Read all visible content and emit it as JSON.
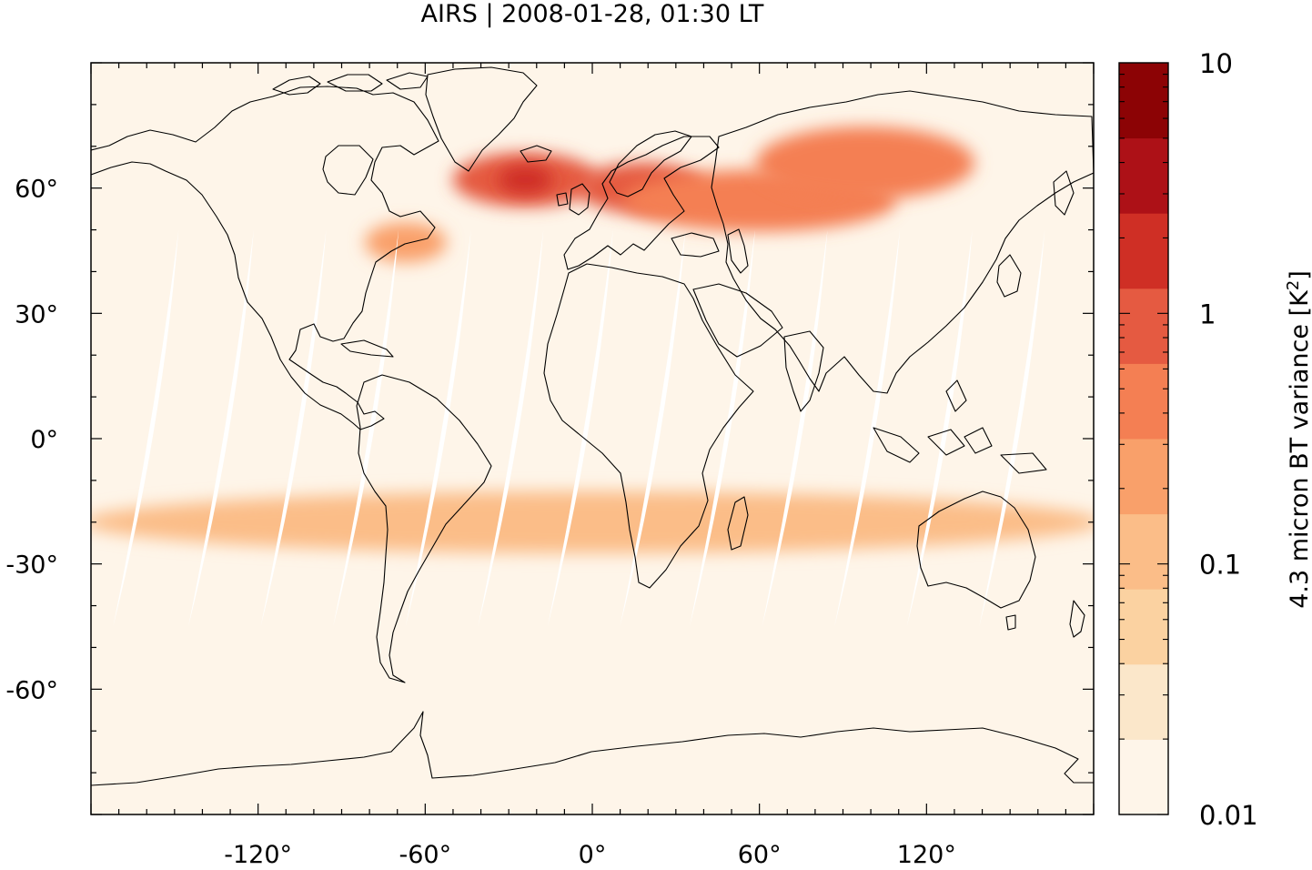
{
  "title": "AIRS | 2008-01-28, 01:30 LT",
  "map": {
    "projection": "equirectangular",
    "lon_range": [
      -180,
      180
    ],
    "lat_range": [
      -90,
      90
    ],
    "background_color": "#fef5e9",
    "swath_gap_color": "#ffffff",
    "coastline_color": "#000000",
    "lon_ticks": [
      -120,
      -60,
      0,
      60,
      120
    ],
    "lon_tick_labels": [
      "-120°",
      "-60°",
      "0°",
      "60°",
      "120°"
    ],
    "lat_ticks": [
      60,
      30,
      0,
      -30,
      -60
    ],
    "lat_tick_labels": [
      "60°",
      "30°",
      "0°",
      "-30°",
      "-60°"
    ],
    "swath_gaps_at_equator_lon": [
      -159,
      -132,
      -106,
      -80,
      -54,
      -28,
      -3,
      23,
      48,
      74,
      100,
      126,
      152
    ],
    "features": [
      {
        "name": "north-atlantic-high-variance",
        "lon": -24,
        "lat": 62,
        "level": 1.2
      },
      {
        "name": "scandinavia-variance",
        "lon": 18,
        "lat": 60,
        "level": 0.7
      },
      {
        "name": "russia-band-variance",
        "lon": 60,
        "lat": 57,
        "level": 0.5
      },
      {
        "name": "siberia-variance",
        "lon": 98,
        "lat": 66,
        "level": 0.5
      },
      {
        "name": "eastern-canada-variance",
        "lon": -67,
        "lat": 47,
        "level": 0.25
      },
      {
        "name": "southern-band-variance",
        "lon": 0,
        "lat": -20,
        "level": 0.1
      }
    ]
  },
  "colorbar": {
    "label": "4.3 micron BT variance [K",
    "label_sup": "2",
    "label_end": "]",
    "scale": "log",
    "range": [
      0.01,
      10
    ],
    "ticks": [
      {
        "value": 10,
        "label": "10"
      },
      {
        "value": 1,
        "label": "1"
      },
      {
        "value": 0.1,
        "label": "0.1"
      },
      {
        "value": 0.01,
        "label": "0.01"
      }
    ],
    "colors": [
      "#fef5e9",
      "#fbe7ca",
      "#fbd2a1",
      "#fbbd88",
      "#f9a06a",
      "#f47f53",
      "#e55a41",
      "#cf2f25",
      "#ad1117",
      "#8c0305"
    ]
  }
}
